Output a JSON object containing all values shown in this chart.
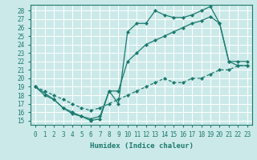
{
  "xlabel": "Humidex (Indice chaleur)",
  "bg_color": "#cce9e9",
  "grid_color": "#ffffff",
  "line_color": "#1a7a6e",
  "xlim": [
    -0.5,
    23.5
  ],
  "ylim": [
    14.5,
    28.7
  ],
  "xticks": [
    0,
    1,
    2,
    3,
    4,
    5,
    6,
    7,
    8,
    9,
    10,
    11,
    12,
    13,
    14,
    15,
    16,
    17,
    18,
    19,
    20,
    21,
    22,
    23
  ],
  "yticks": [
    15,
    16,
    17,
    18,
    19,
    20,
    21,
    22,
    23,
    24,
    25,
    26,
    27,
    28
  ],
  "line1_x": [
    0,
    1,
    2,
    3,
    4,
    5,
    6,
    7,
    8,
    9,
    10,
    11,
    12,
    13,
    14,
    15,
    16,
    17,
    18,
    19,
    20,
    21,
    22,
    23
  ],
  "line1_y": [
    19,
    18,
    17.5,
    16.5,
    15.8,
    15.5,
    15.0,
    15.2,
    18.5,
    17.0,
    25.5,
    26.5,
    26.5,
    28.0,
    27.5,
    27.2,
    27.2,
    27.5,
    28.0,
    28.5,
    26.5,
    22.0,
    21.5,
    21.5
  ],
  "line2_x": [
    0,
    2,
    3,
    4,
    5,
    6,
    7,
    8,
    9,
    10,
    11,
    12,
    13,
    14,
    15,
    16,
    17,
    18,
    19,
    20,
    21,
    22,
    23
  ],
  "line2_y": [
    19,
    17.5,
    16.5,
    16.0,
    15.5,
    15.2,
    15.5,
    18.5,
    18.5,
    22.0,
    23.0,
    24.0,
    24.5,
    25.0,
    25.5,
    26.0,
    26.5,
    26.8,
    27.3,
    26.5,
    22.0,
    22.0,
    22.0
  ],
  "line3_x": [
    0,
    1,
    2,
    3,
    4,
    5,
    6,
    7,
    8,
    9,
    10,
    11,
    12,
    13,
    14,
    15,
    16,
    17,
    18,
    19,
    20,
    21,
    22,
    23
  ],
  "line3_y": [
    19,
    18.5,
    18.0,
    17.5,
    17.0,
    16.5,
    16.2,
    16.5,
    17.0,
    17.5,
    18.0,
    18.5,
    19.0,
    19.5,
    20.0,
    19.5,
    19.5,
    20.0,
    20.0,
    20.5,
    21.0,
    21.0,
    21.5,
    21.5
  ],
  "marker": "D",
  "markersize": 2.0,
  "linewidth": 0.9,
  "axis_fontsize": 6.5,
  "tick_fontsize": 5.5
}
